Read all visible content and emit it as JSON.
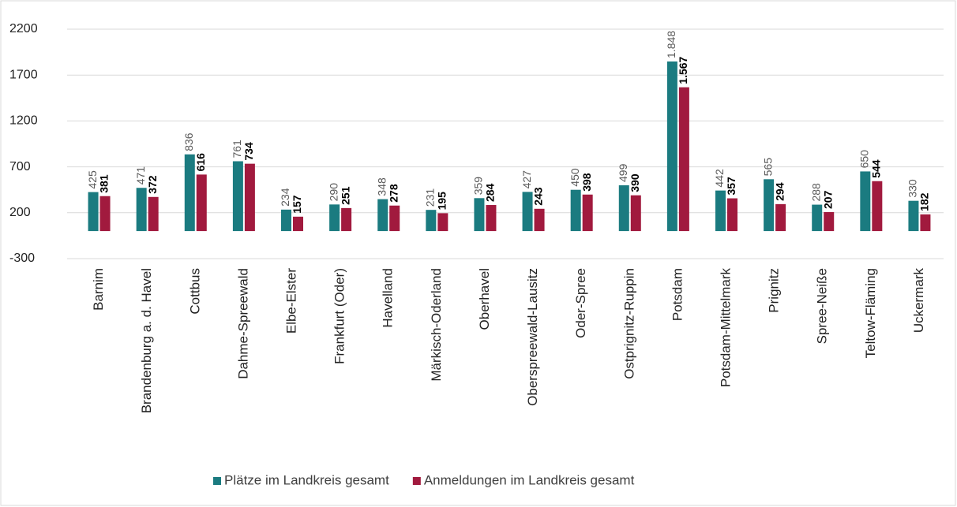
{
  "chart_data": {
    "type": "bar",
    "categories": [
      "Barnim",
      "Brandenburg a. d. Havel",
      "Cottbus",
      "Dahme-Spreewald",
      "Elbe-Elster",
      "Frankfurt (Oder)",
      "Havelland",
      "Märkisch-Oderland",
      "Oberhavel",
      "Oberspreewald-Lausitz",
      "Oder-Spree",
      "Ostprignitz-Ruppin",
      "Potsdam",
      "Potsdam-Mittelmark",
      "Prignitz",
      "Spree-Neiße",
      "Teltow-Fläming",
      "Uckermark"
    ],
    "series": [
      {
        "name": "Plätze im Landkreis gesamt",
        "color": "#1b7b80",
        "values": [
          425,
          471,
          836,
          761,
          234,
          290,
          348,
          231,
          359,
          427,
          450,
          499,
          1848,
          442,
          565,
          288,
          650,
          330
        ],
        "value_labels": [
          "425",
          "471",
          "836",
          "761",
          "234",
          "290",
          "348",
          "231",
          "359",
          "427",
          "450",
          "499",
          "1.848",
          "442",
          "565",
          "288",
          "650",
          "330"
        ]
      },
      {
        "name": "Anmeldungen im Landkreis gesamt",
        "color": "#a11a3e",
        "values": [
          381,
          372,
          616,
          734,
          157,
          251,
          278,
          195,
          284,
          243,
          398,
          390,
          1567,
          357,
          294,
          207,
          544,
          182
        ],
        "value_labels": [
          "381",
          "372",
          "616",
          "734",
          "157",
          "251",
          "278",
          "195",
          "284",
          "243",
          "398",
          "390",
          "1.567",
          "357",
          "294",
          "207",
          "544",
          "182"
        ]
      }
    ],
    "ylim": [
      -300,
      2200
    ],
    "yticks": [
      -300,
      200,
      700,
      1200,
      1700,
      2200
    ],
    "grid": true,
    "legend": "bottom"
  }
}
